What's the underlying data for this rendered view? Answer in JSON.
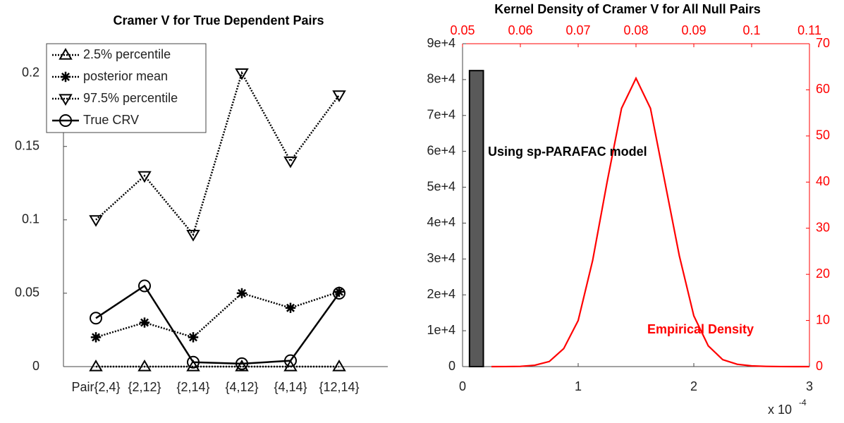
{
  "chart_data": [
    {
      "type": "line",
      "title": "Cramer V for True Dependent Pairs",
      "categories": [
        "Pair{2,4}",
        "{2,12}",
        "{2,14}",
        "{4,12}",
        "{4,14}",
        "{12,14}"
      ],
      "ylim": [
        0,
        0.22
      ],
      "yticks": [
        0,
        0.05,
        0.1,
        0.15,
        0.2
      ],
      "legend": "upper left",
      "series": [
        {
          "name": "2.5% percentile",
          "color": "#000000",
          "marker": "triangle-up",
          "dash": "dotted",
          "values": [
            0,
            0,
            0,
            0,
            0,
            0
          ]
        },
        {
          "name": "posterior mean",
          "color": "#000000",
          "marker": "asterisk",
          "dash": "dotted",
          "values": [
            0.02,
            0.03,
            0.02,
            0.05,
            0.04,
            0.051
          ]
        },
        {
          "name": "97.5% percentile",
          "color": "#000000",
          "marker": "triangle-down",
          "dash": "dotted",
          "values": [
            0.1,
            0.13,
            0.09,
            0.2,
            0.14,
            0.185
          ]
        },
        {
          "name": "True CRV",
          "color": "#000000",
          "marker": "circle",
          "dash": "solid",
          "values": [
            0.033,
            0.055,
            0.003,
            0.002,
            0.004,
            0.05
          ]
        }
      ]
    },
    {
      "type": "histogram",
      "title": "Kernel Density of Cramer V for All Null Pairs",
      "color": "#595959",
      "bins": [
        0.06,
        0.18,
        0.3,
        0.42,
        0.54,
        0.66,
        0.78,
        0.9,
        1.02,
        1.14,
        1.26,
        1.38,
        1.5,
        1.62,
        1.74,
        1.86,
        1.98,
        2.1,
        2.22,
        2.34,
        2.46
      ],
      "counts": [
        82500,
        0,
        0,
        0,
        0,
        0,
        0,
        0,
        0,
        0,
        0,
        0,
        0,
        0,
        0,
        0,
        0,
        0,
        0,
        0
      ],
      "xlim": [
        0,
        3
      ],
      "xticks": [
        0,
        1,
        2,
        3
      ],
      "x_scale_label": "x 10",
      "x_scale_exponent": "-4",
      "ylim": [
        0,
        90000
      ],
      "yticks": [
        0,
        {
          "value": 10000,
          "label": "1e+4"
        },
        {
          "value": 20000,
          "label": "2e+4"
        },
        {
          "value": 30000,
          "label": "3e+4"
        },
        {
          "value": 40000,
          "label": "4e+4"
        },
        {
          "value": 50000,
          "label": "5e+4"
        },
        {
          "value": 60000,
          "label": "6e+4"
        },
        {
          "value": 70000,
          "label": "7e+4"
        },
        {
          "value": 80000,
          "label": "8e+4"
        },
        {
          "value": 90000,
          "label": "9e+4"
        }
      ],
      "annotation": "Using sp-PARAFAC model",
      "x2lim": [
        0.05,
        0.11
      ],
      "x2ticks": [
        0.05,
        0.06,
        0.07,
        0.08,
        0.09,
        0.1,
        0.11
      ],
      "y2lim": [
        0,
        70
      ],
      "y2ticks": [
        0,
        10,
        20,
        30,
        40,
        50,
        60,
        70
      ],
      "density": {
        "name": "Empirical Density",
        "color": "#ff0000",
        "axis": "y2",
        "x": [
          0.055,
          0.0575,
          0.06,
          0.0625,
          0.065,
          0.0675,
          0.07,
          0.0725,
          0.075,
          0.0775,
          0.08,
          0.0825,
          0.085,
          0.0875,
          0.09,
          0.0925,
          0.095,
          0.0975,
          0.1,
          0.1025,
          0.105,
          0.1075,
          0.11
        ],
        "values": [
          0,
          0.01,
          0.05,
          0.3,
          1.1,
          3.9,
          10,
          23,
          40,
          56,
          62.5,
          56,
          40,
          24,
          11,
          4.5,
          1.5,
          0.5,
          0.15,
          0.05,
          0.01,
          0,
          0
        ]
      }
    }
  ]
}
